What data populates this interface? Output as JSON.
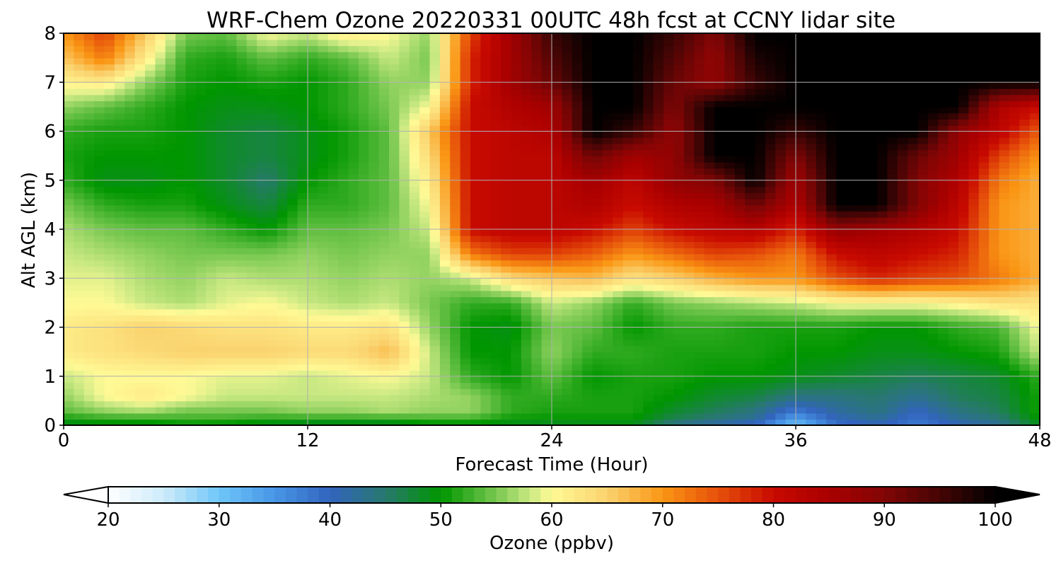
{
  "chart_data": {
    "type": "heatmap",
    "title": "WRF-Chem Ozone  20220331 00UTC 48h fcst at CCNY lidar site",
    "xlabel": "Forecast Time (Hour)",
    "ylabel": "Alt AGL (km)",
    "xlim": [
      0,
      48
    ],
    "ylim": [
      0,
      8
    ],
    "x_ticks": [
      "0",
      "12",
      "24",
      "36",
      "48"
    ],
    "y_ticks": [
      "0",
      "1",
      "2",
      "3",
      "4",
      "5",
      "6",
      "7",
      "8"
    ],
    "grid": true,
    "colorbar": {
      "label": "Ozone  (ppbv)",
      "range": [
        20,
        100
      ],
      "extend": "both",
      "ticks": [
        "20",
        "30",
        "40",
        "50",
        "60",
        "70",
        "80",
        "90",
        "100"
      ]
    },
    "x_hours": [
      0,
      2,
      4,
      6,
      8,
      10,
      12,
      14,
      16,
      18,
      20,
      22,
      24,
      26,
      28,
      30,
      32,
      34,
      36,
      38,
      40,
      42,
      44,
      46,
      48
    ],
    "z_km": [
      0,
      0.1,
      0.3,
      0.6,
      1,
      1.5,
      2,
      2.5,
      3,
      3.5,
      4,
      4.5,
      5,
      5.5,
      6,
      6.5,
      7,
      7.5,
      8
    ],
    "ozone_ppbv": [
      [
        48,
        48,
        48,
        49,
        48,
        47,
        46,
        46,
        46,
        48,
        48,
        48,
        47,
        48,
        48,
        42,
        40,
        38,
        30,
        38,
        40,
        38,
        40,
        42,
        48
      ],
      [
        50,
        51,
        51,
        52,
        52,
        51,
        51,
        51,
        51,
        52,
        52,
        50,
        50,
        50,
        50,
        46,
        44,
        42,
        33,
        40,
        42,
        38,
        42,
        44,
        50
      ],
      [
        54,
        56,
        57,
        55,
        55,
        55,
        56,
        56,
        57,
        56,
        56,
        52,
        51,
        51,
        51,
        48,
        46,
        44,
        38,
        42,
        44,
        40,
        44,
        46,
        51
      ],
      [
        56,
        60,
        62,
        60,
        58,
        58,
        58,
        58,
        58,
        57,
        56,
        52,
        52,
        51,
        51,
        50,
        48,
        47,
        44,
        44,
        45,
        43,
        46,
        47,
        51
      ],
      [
        58,
        60,
        60,
        60,
        59,
        59,
        58,
        59,
        60,
        58,
        52,
        50,
        54,
        50,
        51,
        51,
        50,
        50,
        49,
        48,
        47,
        46,
        47,
        48,
        52
      ],
      [
        62,
        63,
        64,
        65,
        65,
        65,
        64,
        64,
        67,
        58,
        50,
        50,
        56,
        52,
        52,
        51,
        51,
        51,
        50,
        50,
        49,
        49,
        50,
        51,
        58
      ],
      [
        62,
        63,
        65,
        64,
        63,
        63,
        62,
        62,
        63,
        56,
        50,
        49,
        55,
        54,
        50,
        52,
        52,
        51,
        51,
        51,
        50,
        50,
        52,
        53,
        60
      ],
      [
        60,
        60,
        58,
        57,
        59,
        60,
        58,
        57,
        58,
        55,
        52,
        52,
        58,
        56,
        52,
        55,
        56,
        57,
        58,
        60,
        60,
        60,
        61,
        63,
        63
      ],
      [
        59,
        59,
        57,
        56,
        58,
        57,
        57,
        56,
        57,
        56,
        58,
        64,
        66,
        67,
        63,
        65,
        68,
        70,
        70,
        75,
        78,
        76,
        75,
        72,
        68
      ],
      [
        58,
        57,
        56,
        55,
        55,
        55,
        56,
        55,
        56,
        56,
        72,
        76,
        76,
        74,
        70,
        73,
        76,
        75,
        72,
        80,
        82,
        80,
        78,
        70,
        68
      ],
      [
        57,
        55,
        54,
        54,
        52,
        50,
        54,
        54,
        55,
        58,
        80,
        82,
        82,
        80,
        76,
        80,
        82,
        83,
        78,
        88,
        86,
        84,
        80,
        70,
        68
      ],
      [
        55,
        52,
        51,
        51,
        49,
        47,
        52,
        52,
        54,
        60,
        80,
        82,
        82,
        84,
        80,
        84,
        85,
        92,
        84,
        100,
        100,
        90,
        82,
        70,
        68
      ],
      [
        52,
        49,
        49,
        50,
        48,
        45,
        50,
        52,
        54,
        62,
        80,
        82,
        82,
        86,
        82,
        88,
        90,
        100,
        86,
        100,
        100,
        90,
        84,
        72,
        68
      ],
      [
        51,
        50,
        50,
        50,
        48,
        47,
        49,
        51,
        54,
        64,
        80,
        82,
        82,
        92,
        86,
        88,
        100,
        100,
        90,
        100,
        100,
        92,
        86,
        76,
        70
      ],
      [
        52,
        51,
        51,
        50,
        48,
        47,
        49,
        51,
        54,
        66,
        80,
        82,
        84,
        100,
        96,
        88,
        100,
        100,
        96,
        100,
        100,
        100,
        88,
        82,
        74
      ],
      [
        56,
        54,
        52,
        50,
        49,
        49,
        50,
        52,
        55,
        60,
        80,
        84,
        86,
        100,
        100,
        90,
        100,
        100,
        100,
        100,
        100,
        100,
        100,
        84,
        80
      ],
      [
        61,
        62,
        56,
        51,
        50,
        51,
        50,
        52,
        56,
        56,
        78,
        86,
        92,
        100,
        100,
        92,
        88,
        96,
        100,
        100,
        100,
        100,
        100,
        100,
        100
      ],
      [
        66,
        72,
        62,
        52,
        51,
        54,
        52,
        54,
        58,
        55,
        78,
        86,
        94,
        100,
        100,
        94,
        88,
        98,
        100,
        100,
        100,
        100,
        100,
        100,
        100
      ],
      [
        70,
        76,
        66,
        55,
        54,
        60,
        58,
        62,
        60,
        56,
        76,
        86,
        96,
        100,
        100,
        96,
        90,
        100,
        100,
        100,
        100,
        100,
        100,
        100,
        100
      ]
    ]
  }
}
